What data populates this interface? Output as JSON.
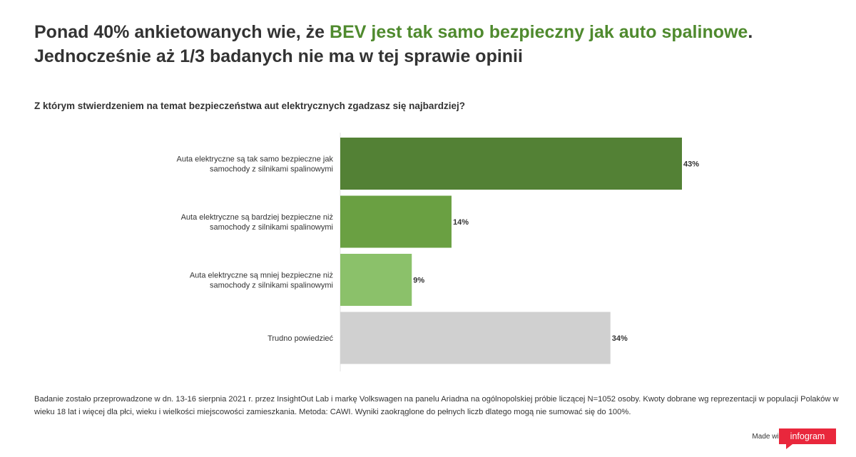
{
  "title": {
    "part1": "Ponad 40% ankietowanych wie, że ",
    "highlight": "BEV jest tak samo bezpieczny jak auto spalinowe",
    "part2": ".",
    "line2": "Jednocześnie aż 1/3 badanych nie ma w tej sprawie opinii"
  },
  "question": "Z którym stwierdzeniem na temat bezpieczeństwa aut elektrycznych zgadzasz się najbardziej?",
  "footnote": "Badanie zostało przeprowadzone w dn. 13-16 sierpnia 2021 r. przez InsightOut Lab i markę Volkswagen na panelu Ariadna na ogólnopolskiej próbie liczącej N=1052 osoby. Kwoty dobrane wg reprezentacji w populacji Polaków w wieku 18 lat i więcej dla płci, wieku i wielkości miejscowości zamieszkania. Metoda: CAWI. Wyniki zaokrąglone do pełnych liczb dlatego mogą nie sumować się do 100%.",
  "branding": {
    "made_with": "Made with",
    "logo_text": "infogram"
  },
  "colors": {
    "highlight": "#4f8a2e",
    "brand": "#e9273c"
  },
  "chart_data": {
    "type": "bar",
    "orientation": "horizontal",
    "categories": [
      [
        "Auta elektryczne są tak samo bezpieczne jak",
        "samochody z silnikami spalinowymi"
      ],
      [
        "Auta elektryczne są bardziej bezpieczne niż",
        "samochody z silnikami spalinowymi"
      ],
      [
        "Auta elektryczne są mniej bezpieczne niż",
        "samochody z silnikami spalinowymi"
      ],
      [
        "Trudno powiedzieć"
      ]
    ],
    "values": [
      43,
      14,
      9,
      34
    ],
    "labels": [
      "43%",
      "14%",
      "9%",
      "34%"
    ],
    "colors": [
      "#538135",
      "#6aa042",
      "#8bc16a",
      "#d0d0d0"
    ],
    "unit": "%",
    "xlim": [
      0,
      43
    ]
  }
}
